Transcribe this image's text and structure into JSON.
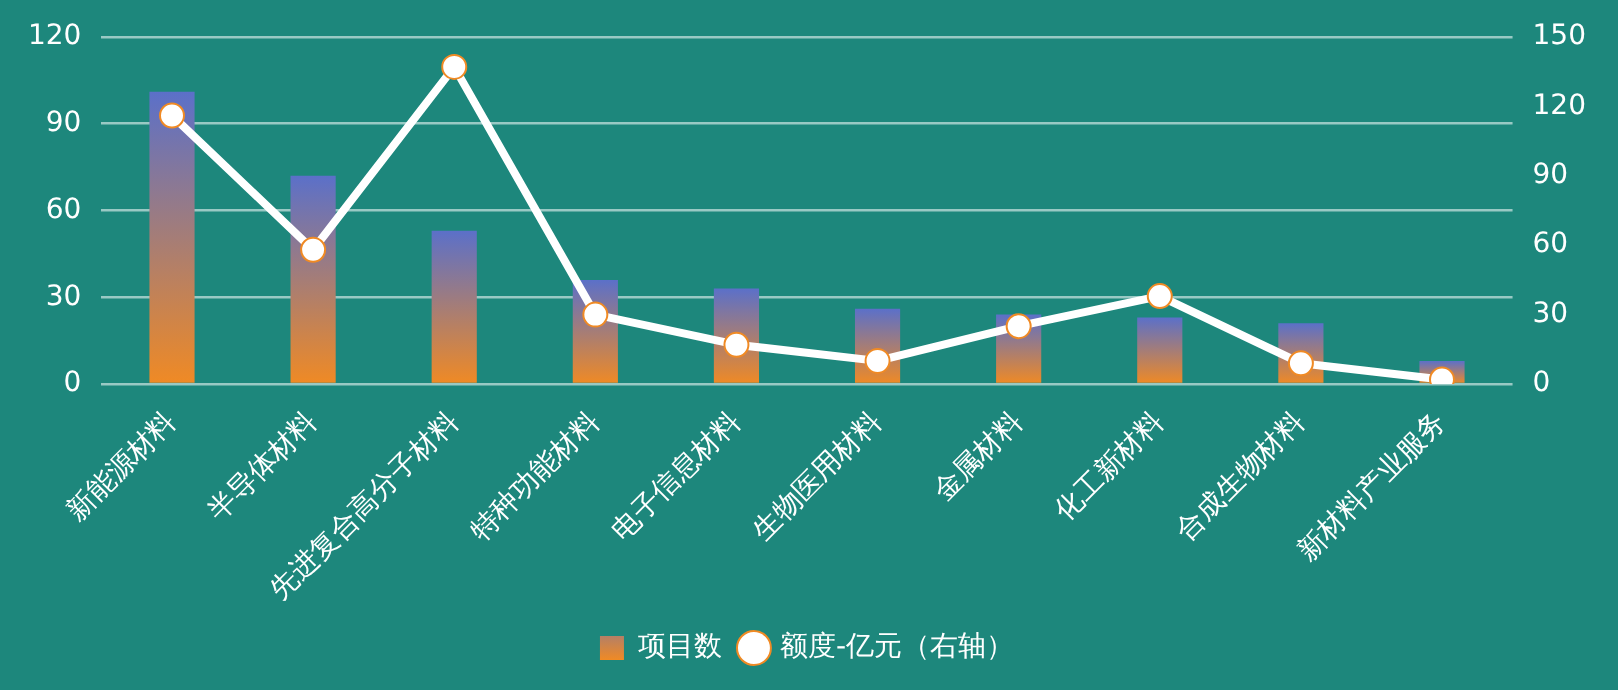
{
  "chart_data": {
    "type": "bar",
    "categories": [
      "新能源材料",
      "半导体材料",
      "先进复合高分子材料",
      "特种功能材料",
      "电子信息材料",
      "生物医用材料",
      "金属材料",
      "化工新材料",
      "合成生物材料",
      "新材料产业服务"
    ],
    "series": [
      {
        "name": "项目数",
        "color": "#f08a24",
        "values": [
          101,
          72,
          53,
          36,
          33,
          26,
          24,
          23,
          21,
          8
        ]
      },
      {
        "name": "额度-亿元（右轴）",
        "type": "line",
        "axis": "y2",
        "color": "#ffffff",
        "values": [
          116,
          58,
          137,
          30,
          17,
          10,
          25,
          38,
          9,
          2
        ]
      }
    ],
    "ylim": [
      0,
      120
    ],
    "yticks": [
      0,
      30,
      60,
      90,
      120
    ],
    "y2lim": [
      0,
      150
    ],
    "y2ticks": [
      0,
      30,
      60,
      90,
      120,
      150
    ],
    "grid": "y",
    "legend": "bottom",
    "marker": "circle"
  }
}
